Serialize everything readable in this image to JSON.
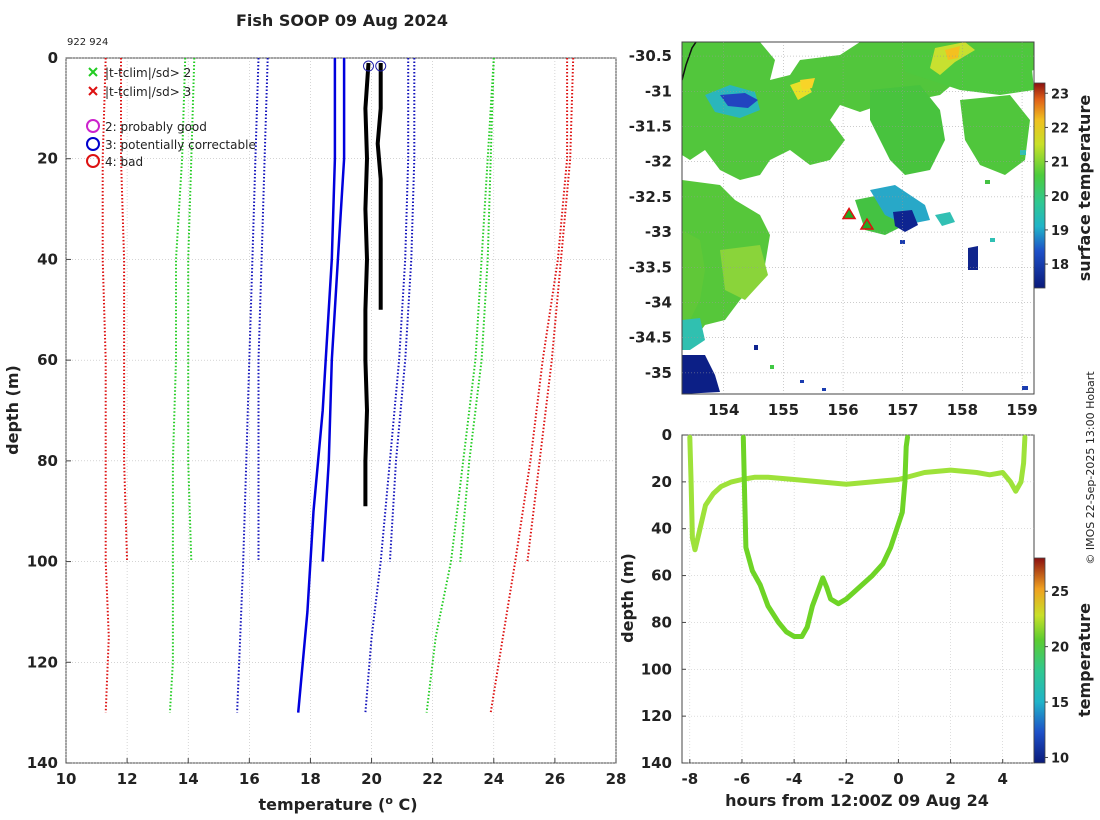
{
  "title": "Fish SOOP 09 Aug 2024",
  "profile_ids": "922 924",
  "credit": "© IMOS 22-Sep-2025 13:00 Hobart",
  "colors": {
    "clim_sd2": "#22cc22",
    "clim_sd3": "#dd1111",
    "clim_sd1": "#1111bb",
    "mean_profile": "#0000dd",
    "obs_profile": "#000000",
    "grid": "#bbbbbb"
  },
  "legend": [
    {
      "marker": "x",
      "color": "#22cc22",
      "label": "|t-tclim|/sd> 2"
    },
    {
      "marker": "x",
      "color": "#dd1111",
      "label": "|t-tclim|/sd> 3"
    },
    {
      "marker": "o",
      "color": "#cc22cc",
      "label": "2: probably good"
    },
    {
      "marker": "o",
      "color": "#0000cc",
      "label": "3: potentially correctable"
    },
    {
      "marker": "o",
      "color": "#dd1111",
      "label": "4: bad"
    }
  ],
  "chart_data": [
    {
      "type": "line",
      "name": "profile",
      "xlabel": "temperature (o C)",
      "ylabel": "depth (m)",
      "xlim": [
        10,
        28
      ],
      "ylim": [
        140,
        0
      ],
      "xticks": [
        10,
        12,
        14,
        16,
        18,
        20,
        22,
        24,
        26,
        28
      ],
      "yticks": [
        0,
        20,
        40,
        60,
        80,
        100,
        120,
        140
      ],
      "grid": true,
      "series": [
        {
          "name": "clim -3sd (0-100m)",
          "style": "dotted",
          "color": "#dd1111",
          "points": [
            [
              11.8,
              0
            ],
            [
              11.8,
              20
            ],
            [
              11.9,
              40
            ],
            [
              11.9,
              60
            ],
            [
              11.9,
              80
            ],
            [
              12.0,
              100
            ]
          ]
        },
        {
          "name": "clim -3sd (100-130m)",
          "style": "dotted",
          "color": "#dd1111",
          "points": [
            [
              11.3,
              0
            ],
            [
              11.2,
              20
            ],
            [
              11.2,
              40
            ],
            [
              11.3,
              60
            ],
            [
              11.3,
              80
            ],
            [
              11.3,
              100
            ],
            [
              11.4,
              115
            ],
            [
              11.3,
              130
            ]
          ]
        },
        {
          "name": "clim -2sd (0-100m)",
          "style": "dotted",
          "color": "#22cc22",
          "points": [
            [
              14.2,
              0
            ],
            [
              14.1,
              20
            ],
            [
              14.0,
              40
            ],
            [
              14.0,
              60
            ],
            [
              14.0,
              80
            ],
            [
              14.1,
              100
            ]
          ]
        },
        {
          "name": "clim -2sd (100-130m)",
          "style": "dotted",
          "color": "#22cc22",
          "points": [
            [
              13.9,
              0
            ],
            [
              13.8,
              20
            ],
            [
              13.6,
              40
            ],
            [
              13.6,
              60
            ],
            [
              13.5,
              80
            ],
            [
              13.5,
              100
            ],
            [
              13.5,
              120
            ],
            [
              13.4,
              130
            ]
          ]
        },
        {
          "name": "clim -1sd (0-100m)",
          "style": "dotted",
          "color": "#1111bb",
          "points": [
            [
              16.6,
              0
            ],
            [
              16.5,
              20
            ],
            [
              16.4,
              40
            ],
            [
              16.3,
              60
            ],
            [
              16.3,
              80
            ],
            [
              16.3,
              100
            ]
          ]
        },
        {
          "name": "clim -1sd (100-130m)",
          "style": "dotted",
          "color": "#1111bb",
          "points": [
            [
              16.3,
              0
            ],
            [
              16.2,
              20
            ],
            [
              16.1,
              40
            ],
            [
              16.0,
              60
            ],
            [
              15.9,
              80
            ],
            [
              15.8,
              100
            ],
            [
              15.7,
              115
            ],
            [
              15.6,
              130
            ]
          ]
        },
        {
          "name": "clim mean (0-100m)",
          "style": "solid",
          "color": "#0000dd",
          "points": [
            [
              19.1,
              0
            ],
            [
              19.1,
              20
            ],
            [
              18.9,
              40
            ],
            [
              18.7,
              60
            ],
            [
              18.6,
              80
            ],
            [
              18.4,
              100
            ]
          ]
        },
        {
          "name": "clim mean (100-130m)",
          "style": "solid",
          "color": "#0000dd",
          "points": [
            [
              18.8,
              0
            ],
            [
              18.8,
              20
            ],
            [
              18.7,
              40
            ],
            [
              18.5,
              60
            ],
            [
              18.4,
              70
            ],
            [
              18.1,
              90
            ],
            [
              17.9,
              110
            ],
            [
              17.6,
              130
            ]
          ]
        },
        {
          "name": "clim +1sd (0-100m)",
          "style": "dotted",
          "color": "#1111bb",
          "points": [
            [
              21.4,
              0
            ],
            [
              21.4,
              20
            ],
            [
              21.3,
              40
            ],
            [
              21.1,
              60
            ],
            [
              20.8,
              80
            ],
            [
              20.6,
              100
            ]
          ]
        },
        {
          "name": "clim +1sd (100-130m)",
          "style": "dotted",
          "color": "#1111bb",
          "points": [
            [
              21.2,
              0
            ],
            [
              21.2,
              20
            ],
            [
              21.1,
              40
            ],
            [
              20.9,
              60
            ],
            [
              20.6,
              80
            ],
            [
              20.3,
              100
            ],
            [
              20.0,
              115
            ],
            [
              19.8,
              130
            ]
          ]
        },
        {
          "name": "clim +2sd (0-100m)",
          "style": "dotted",
          "color": "#22cc22",
          "points": [
            [
              24.0,
              0
            ],
            [
              23.9,
              20
            ],
            [
              23.8,
              40
            ],
            [
              23.6,
              60
            ],
            [
              23.2,
              80
            ],
            [
              22.9,
              100
            ]
          ]
        },
        {
          "name": "clim +2sd (100-130m)",
          "style": "dotted",
          "color": "#22cc22",
          "points": [
            [
              24.0,
              0
            ],
            [
              23.8,
              20
            ],
            [
              23.6,
              40
            ],
            [
              23.4,
              60
            ],
            [
              23.0,
              80
            ],
            [
              22.6,
              100
            ],
            [
              22.1,
              115
            ],
            [
              21.8,
              130
            ]
          ]
        },
        {
          "name": "clim +3sd (0-100m)",
          "style": "dotted",
          "color": "#dd1111",
          "points": [
            [
              26.6,
              0
            ],
            [
              26.5,
              20
            ],
            [
              26.2,
              40
            ],
            [
              25.9,
              60
            ],
            [
              25.5,
              80
            ],
            [
              25.1,
              100
            ]
          ]
        },
        {
          "name": "clim +3sd (100-130m)",
          "style": "dotted",
          "color": "#dd1111",
          "points": [
            [
              26.4,
              0
            ],
            [
              26.4,
              20
            ],
            [
              26.1,
              40
            ],
            [
              25.6,
              60
            ],
            [
              25.2,
              80
            ],
            [
              24.7,
              100
            ],
            [
              24.3,
              115
            ],
            [
              23.9,
              130
            ]
          ]
        },
        {
          "name": "profile 922",
          "style": "thick",
          "color": "#000000",
          "points": [
            [
              19.9,
              1
            ],
            [
              19.8,
              10
            ],
            [
              19.85,
              20
            ],
            [
              19.8,
              30
            ],
            [
              19.85,
              40
            ],
            [
              19.8,
              50
            ],
            [
              19.8,
              60
            ],
            [
              19.85,
              70
            ],
            [
              19.8,
              80
            ],
            [
              19.8,
              89
            ]
          ]
        },
        {
          "name": "profile 924",
          "style": "thick",
          "color": "#000000",
          "points": [
            [
              20.3,
              1
            ],
            [
              20.3,
              10
            ],
            [
              20.2,
              17
            ],
            [
              20.3,
              24
            ],
            [
              20.3,
              30
            ],
            [
              20.3,
              40
            ],
            [
              20.3,
              50
            ]
          ]
        }
      ],
      "flags": [
        {
          "x": 19.9,
          "y": 1,
          "flag": "3: potentially correctable"
        },
        {
          "x": 20.3,
          "y": 1,
          "flag": "3: potentially correctable"
        }
      ]
    },
    {
      "type": "heatmap",
      "name": "surface temperature map",
      "xlim": [
        153.3,
        159.2
      ],
      "ylim": [
        -35.3,
        -30.3
      ],
      "xticks": [
        154,
        155,
        156,
        157,
        158,
        159
      ],
      "yticks": [
        -30.5,
        -31,
        -31.5,
        -32,
        -32.5,
        -33,
        -33.5,
        -34,
        -34.5,
        -35
      ],
      "colorbar_label": "surface temperature",
      "colorbar_ticks": [
        18,
        19,
        20,
        21,
        22,
        23
      ],
      "colorbar_range": [
        17.3,
        23.3
      ],
      "markers": [
        {
          "lon": 156.1,
          "lat": -32.75,
          "symbol": "triangle"
        },
        {
          "lon": 156.4,
          "lat": -32.9,
          "symbol": "triangle"
        }
      ]
    },
    {
      "type": "scatter",
      "name": "depth time series",
      "xlabel": "hours from 12:00Z 09 Aug 24",
      "ylabel": "depth (m)",
      "xlim": [
        -8.3,
        5.2
      ],
      "ylim": [
        140,
        0
      ],
      "xticks": [
        -8,
        -6,
        -4,
        -2,
        0,
        2,
        4
      ],
      "yticks": [
        0,
        20,
        40,
        60,
        80,
        100,
        120,
        140
      ],
      "colorbar_label": "temperature",
      "colorbar_ticks": [
        10,
        15,
        20,
        25
      ],
      "colorbar_range": [
        9.5,
        28
      ],
      "series": [
        {
          "name": "track 1",
          "color": "#9ee23a",
          "points": [
            [
              -8.0,
              1
            ],
            [
              -7.95,
              20
            ],
            [
              -7.9,
              44
            ],
            [
              -7.8,
              49
            ],
            [
              -7.65,
              42
            ],
            [
              -7.4,
              30
            ],
            [
              -7.1,
              25
            ],
            [
              -6.8,
              22
            ],
            [
              -6.4,
              20
            ],
            [
              -6.0,
              19
            ],
            [
              -5.5,
              18
            ],
            [
              -5,
              18
            ],
            [
              -4,
              19
            ],
            [
              -3,
              20
            ],
            [
              -2,
              21
            ],
            [
              -1,
              20
            ],
            [
              0,
              19
            ],
            [
              1,
              16
            ],
            [
              2,
              15
            ],
            [
              3,
              16
            ],
            [
              3.5,
              17
            ],
            [
              4.0,
              16
            ],
            [
              4.3,
              20
            ],
            [
              4.5,
              24
            ],
            [
              4.7,
              20
            ],
            [
              4.8,
              12
            ],
            [
              4.85,
              1
            ]
          ]
        },
        {
          "name": "track 2",
          "color": "#6ed426",
          "points": [
            [
              -5.95,
              1
            ],
            [
              -5.9,
              25
            ],
            [
              -5.85,
              48
            ],
            [
              -5.6,
              58
            ],
            [
              -5.3,
              64
            ],
            [
              -5.0,
              73
            ],
            [
              -4.6,
              80
            ],
            [
              -4.3,
              84
            ],
            [
              -4.0,
              86
            ],
            [
              -3.7,
              86
            ],
            [
              -3.5,
              82
            ],
            [
              -3.3,
              73
            ],
            [
              -3.1,
              67
            ],
            [
              -2.9,
              61
            ],
            [
              -2.75,
              65
            ],
            [
              -2.6,
              70
            ],
            [
              -2.3,
              72
            ],
            [
              -2.0,
              70
            ],
            [
              -1.7,
              67
            ],
            [
              -1.3,
              63
            ],
            [
              -1.0,
              60
            ],
            [
              -0.6,
              55
            ],
            [
              -0.3,
              48
            ],
            [
              0.0,
              38
            ],
            [
              0.15,
              33
            ],
            [
              0.25,
              20
            ],
            [
              0.3,
              5
            ],
            [
              0.35,
              1
            ]
          ]
        }
      ]
    }
  ]
}
